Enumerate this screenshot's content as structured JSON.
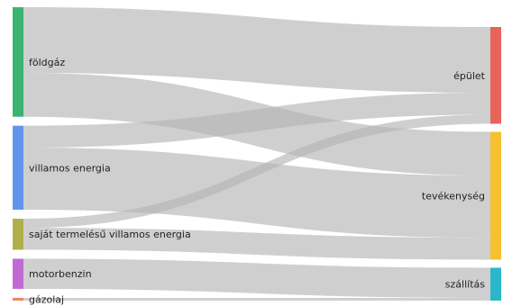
{
  "chart_data": {
    "type": "sankey",
    "title": "",
    "nodes": [
      {
        "id": "foldgaz",
        "label": "földgáz",
        "color": "#3cb371",
        "side": "source"
      },
      {
        "id": "villamos",
        "label": "villamos energia",
        "color": "#6495ed",
        "side": "source"
      },
      {
        "id": "sajat",
        "label": "saját termelésű villamos energia",
        "color": "#b0b04a",
        "side": "source"
      },
      {
        "id": "motorbenzin",
        "label": "motorbenzin",
        "color": "#c06ad3",
        "side": "source"
      },
      {
        "id": "gazolaj",
        "label": "gázolaj",
        "color": "#f4845f",
        "side": "source"
      },
      {
        "id": "epulet",
        "label": "épület",
        "color": "#e8645a",
        "side": "target"
      },
      {
        "id": "tevekenyseg",
        "label": "tevékenység",
        "color": "#f6c12e",
        "side": "target"
      },
      {
        "id": "szallitas",
        "label": "szállítás",
        "color": "#2ab7ca",
        "side": "target"
      }
    ],
    "links": [
      {
        "source": "foldgaz",
        "target": "epulet",
        "value": 72
      },
      {
        "source": "foldgaz",
        "target": "tevekenyseg",
        "value": 48
      },
      {
        "source": "villamos",
        "target": "epulet",
        "value": 24
      },
      {
        "source": "villamos",
        "target": "tevekenyseg",
        "value": 68
      },
      {
        "source": "sajat",
        "target": "epulet",
        "value": 10
      },
      {
        "source": "sajat",
        "target": "tevekenyseg",
        "value": 24
      },
      {
        "source": "motorbenzin",
        "target": "szallitas",
        "value": 33
      },
      {
        "source": "gazolaj",
        "target": "szallitas",
        "value": 3
      }
    ]
  }
}
